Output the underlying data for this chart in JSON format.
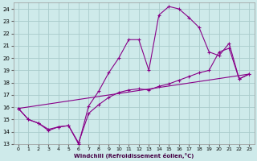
{
  "xlabel": "Windchill (Refroidissement éolien,°C)",
  "bg_color": "#ceeaea",
  "grid_color": "#aacccc",
  "line_color": "#880088",
  "xlim": [
    -0.5,
    23.5
  ],
  "ylim": [
    13,
    24.5
  ],
  "xticks": [
    0,
    1,
    2,
    3,
    4,
    5,
    6,
    7,
    8,
    9,
    10,
    11,
    12,
    13,
    14,
    15,
    16,
    17,
    18,
    19,
    20,
    21,
    22,
    23
  ],
  "yticks": [
    13,
    14,
    15,
    16,
    17,
    18,
    19,
    20,
    21,
    22,
    23,
    24
  ],
  "line1_x": [
    0,
    1,
    2,
    3,
    4,
    5,
    6,
    7,
    8,
    9,
    10,
    11,
    12,
    13,
    14,
    15,
    16,
    17,
    18,
    19,
    20,
    21,
    22,
    23
  ],
  "line1_y": [
    15.9,
    15.0,
    14.7,
    14.1,
    14.4,
    14.5,
    13.0,
    16.1,
    17.3,
    18.8,
    20.0,
    21.5,
    21.5,
    19.0,
    23.5,
    24.2,
    24.0,
    23.3,
    22.5,
    20.5,
    20.2,
    21.2,
    18.3,
    18.7
  ],
  "line2_x": [
    0,
    1,
    2,
    3,
    4,
    5,
    6,
    7,
    8,
    9,
    10,
    11,
    12,
    13,
    14,
    15,
    16,
    17,
    18,
    19,
    20,
    21,
    22,
    23
  ],
  "line2_y": [
    15.9,
    15.0,
    14.7,
    14.2,
    14.4,
    14.5,
    13.1,
    15.5,
    16.2,
    16.8,
    17.2,
    17.4,
    17.5,
    17.4,
    17.7,
    17.9,
    18.2,
    18.5,
    18.8,
    19.0,
    20.5,
    20.8,
    18.3,
    18.7
  ],
  "line3_x": [
    0,
    23
  ],
  "line3_y": [
    15.9,
    18.7
  ]
}
